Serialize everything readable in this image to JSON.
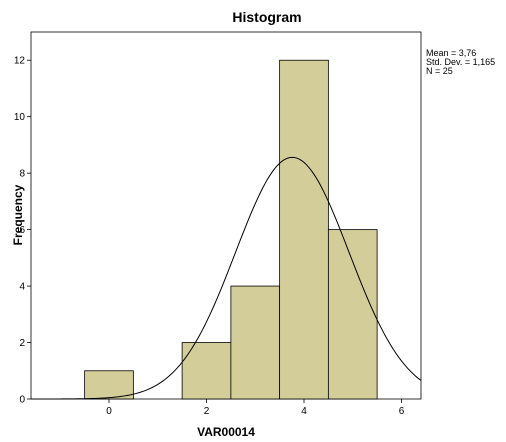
{
  "chart_data": {
    "type": "bar",
    "title": "Histogram",
    "xlabel": "VAR00014",
    "ylabel": "Frequency",
    "bins": [
      {
        "center": 0,
        "count": 1
      },
      {
        "center": 1,
        "count": 0
      },
      {
        "center": 2,
        "count": 2
      },
      {
        "center": 3,
        "count": 4
      },
      {
        "center": 4,
        "count": 12
      },
      {
        "center": 5,
        "count": 6
      }
    ],
    "bin_width": 1,
    "xlim": [
      -1.6,
      6.4
    ],
    "ylim": [
      0,
      13
    ],
    "xticks": [
      0,
      2,
      4,
      6
    ],
    "yticks": [
      0,
      2,
      4,
      6,
      8,
      10,
      12
    ],
    "stats": {
      "mean_text": "Mean = 3,76",
      "std_text": "Std. Dev. = 1,165",
      "n_text": "N = 25"
    },
    "normal_curve": {
      "mean": 3.76,
      "std": 1.165,
      "n": 25
    },
    "grid": false,
    "bar_fill": "#d3ce99",
    "bar_stroke": "#000000",
    "background": "#ffffff"
  }
}
